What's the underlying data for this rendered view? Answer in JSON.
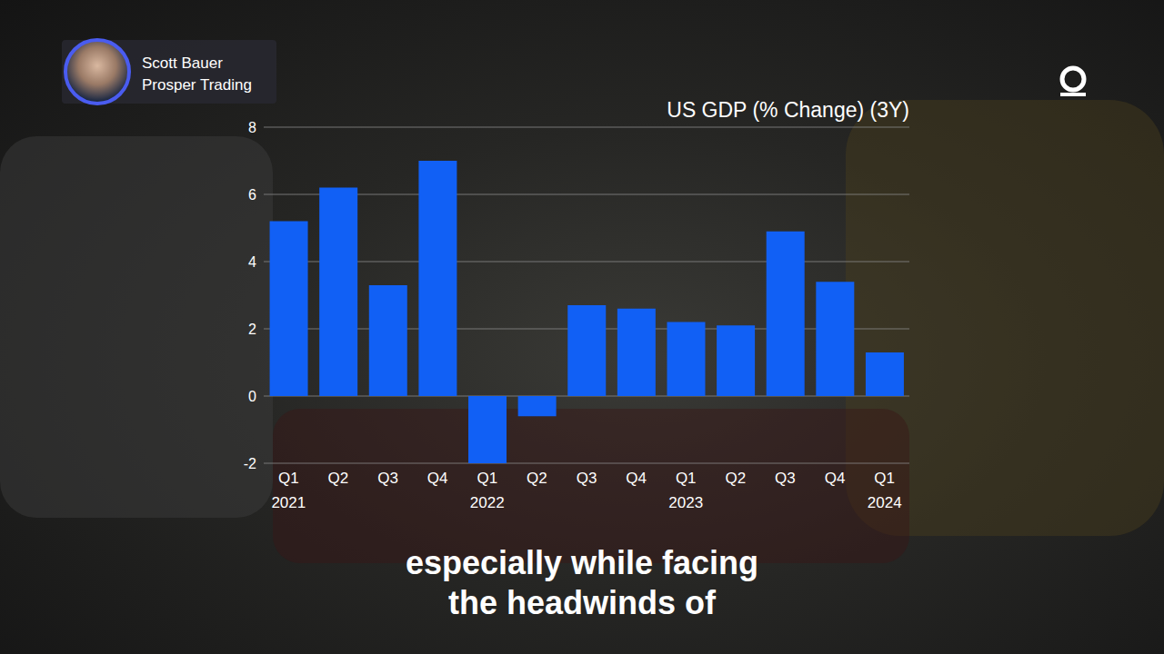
{
  "chart_data": {
    "type": "bar",
    "title": "US GDP (% Change) (3Y)",
    "categories": [
      "Q1 2021",
      "Q2",
      "Q3",
      "Q4",
      "Q1 2022",
      "Q2",
      "Q3",
      "Q4",
      "Q1 2023",
      "Q2",
      "Q3",
      "Q4",
      "Q1 2024"
    ],
    "values": [
      5.2,
      6.2,
      3.3,
      7.0,
      -2.0,
      -0.6,
      2.7,
      2.6,
      2.2,
      2.1,
      4.9,
      3.4,
      1.3
    ],
    "color": "#1160f5",
    "ylim": [
      -2,
      8
    ],
    "yticks": [
      -2,
      0,
      2,
      4,
      6,
      8
    ],
    "grid": true
  },
  "presenter": {
    "name": "Scott Bauer",
    "affiliation": "Prosper Trading"
  },
  "caption": [
    "especially while facing",
    "the headwinds of"
  ]
}
